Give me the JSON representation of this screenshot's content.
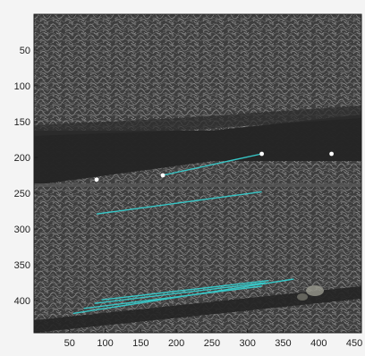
{
  "chart_data": {
    "type": "scatter",
    "title": "",
    "xlabel": "",
    "ylabel": "",
    "xlim": [
      0,
      460
    ],
    "ylim": [
      445,
      0
    ],
    "y_reversed": true,
    "grid": false,
    "legend": "none",
    "background": "grayscale micrograph (image)",
    "xticks": [
      50,
      100,
      150,
      200,
      250,
      300,
      350,
      400,
      450
    ],
    "yticks": [
      50,
      100,
      150,
      200,
      250,
      300,
      350,
      400
    ],
    "line_color": "#37c7c7",
    "point_color": "#ffffff",
    "points": [
      {
        "x": 88,
        "y": 231
      },
      {
        "x": 181,
        "y": 225
      },
      {
        "x": 320,
        "y": 195
      },
      {
        "x": 418,
        "y": 195
      }
    ],
    "segments": [
      {
        "x1": 181,
        "y1": 225,
        "x2": 320,
        "y2": 195
      },
      {
        "x1": 88,
        "y1": 279,
        "x2": 320,
        "y2": 248
      },
      {
        "x1": 55,
        "y1": 418,
        "x2": 365,
        "y2": 370
      },
      {
        "x1": 70,
        "y1": 411,
        "x2": 320,
        "y2": 380
      },
      {
        "x1": 85,
        "y1": 404,
        "x2": 325,
        "y2": 375
      },
      {
        "x1": 95,
        "y1": 399,
        "x2": 330,
        "y2": 372
      }
    ]
  }
}
